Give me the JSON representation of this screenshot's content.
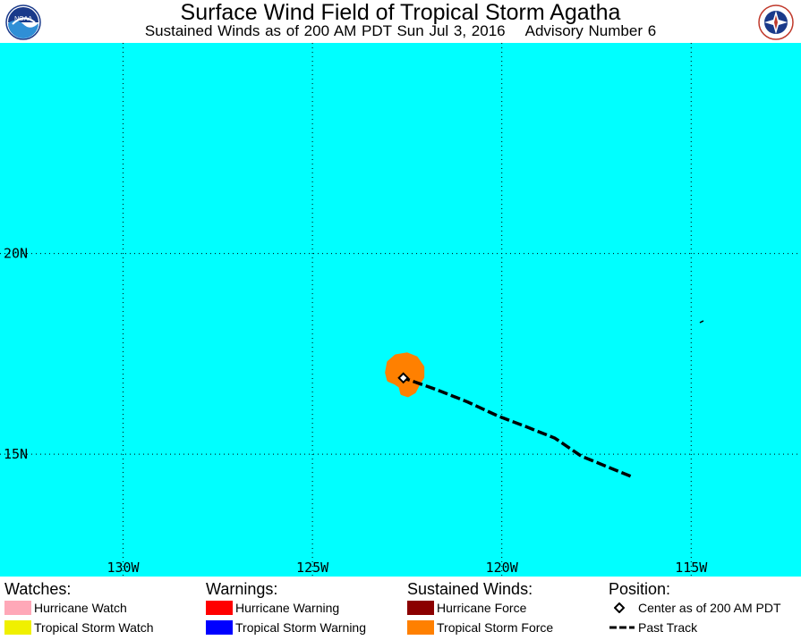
{
  "header": {
    "title": "Surface Wind Field of Tropical Storm Agatha",
    "subtitle": "Sustained Winds as of 200 AM PDT Sun Jul 3, 2016",
    "advisory": "Advisory Number 6",
    "left_logo": "noaa-logo",
    "right_logo": "nws-logo"
  },
  "map": {
    "ocean_color": "#00FFFF",
    "grid_color": "#000000",
    "lon_range": [
      -133.25,
      -112.1
    ],
    "lat_range": [
      11.95,
      25.25
    ],
    "lat_labels": [
      "20N",
      "15N"
    ],
    "lon_labels": [
      "130W",
      "125W",
      "120W",
      "115W"
    ],
    "lat_lines": [
      20,
      15
    ],
    "lon_lines": [
      -130,
      -125,
      -120,
      -115
    ],
    "storm": {
      "center": [
        -122.6,
        16.9
      ],
      "tropical_storm_force_color": "#FF8000",
      "past_track": [
        [
          -116.6,
          14.45
        ],
        [
          -117.9,
          14.95
        ],
        [
          -118.6,
          15.4
        ],
        [
          -119.4,
          15.7
        ],
        [
          -120.1,
          15.95
        ],
        [
          -120.9,
          16.3
        ],
        [
          -121.7,
          16.6
        ],
        [
          -122.6,
          16.9
        ]
      ]
    },
    "island": [
      -114.7,
      18.3
    ]
  },
  "legend": {
    "watches": {
      "heading": "Watches:",
      "items": [
        {
          "label": "Hurricane Watch",
          "color": "#FFA8B8"
        },
        {
          "label": "Tropical Storm Watch",
          "color": "#F0F000"
        }
      ]
    },
    "warnings": {
      "heading": "Warnings:",
      "items": [
        {
          "label": "Hurricane Warning",
          "color": "#FF0000"
        },
        {
          "label": "Tropical Storm Warning",
          "color": "#0000FF"
        }
      ]
    },
    "winds": {
      "heading": "Sustained Winds:",
      "items": [
        {
          "label": "Hurricane Force",
          "color": "#8B0000"
        },
        {
          "label": "Tropical Storm Force",
          "color": "#FF8000"
        }
      ]
    },
    "position": {
      "heading": "Position:",
      "items": [
        {
          "label": "Center as of 200 AM PDT",
          "icon": "diamond-icon"
        },
        {
          "label": "Past Track",
          "icon": "dashed-line-icon"
        }
      ]
    }
  }
}
